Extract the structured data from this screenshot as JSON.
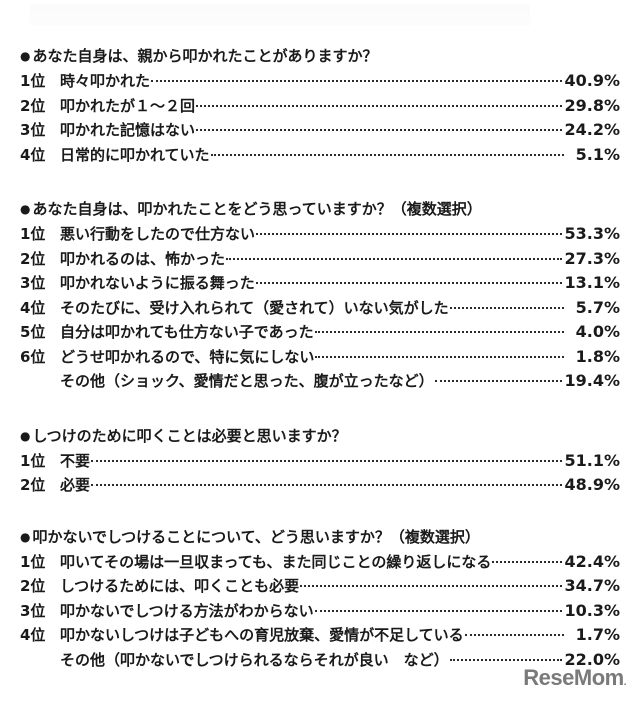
{
  "sections": [
    {
      "question": "あなた自身は、親から叩かれたことがありますか？",
      "rows": [
        {
          "rank": "1位",
          "label": "時々叩かれた",
          "pct": "40.9%"
        },
        {
          "rank": "2位",
          "label": "叩かれたが１～２回",
          "pct": "29.8%"
        },
        {
          "rank": "3位",
          "label": "叩かれた記憶はない",
          "pct": "24.2%"
        },
        {
          "rank": "4位",
          "label": "日常的に叩かれていた",
          "pct": "5.1%"
        }
      ]
    },
    {
      "question": "あなた自身は、叩かれたことをどう思っていますか？（複数選択）",
      "rows": [
        {
          "rank": "1位",
          "label": "悪い行動をしたので仕方ない",
          "pct": "53.3%"
        },
        {
          "rank": "2位",
          "label": "叩かれるのは、怖かった",
          "pct": "27.3%"
        },
        {
          "rank": "3位",
          "label": "叩かれないように振る舞った",
          "pct": "13.1%"
        },
        {
          "rank": "4位",
          "label": "そのたびに、受け入れられて（愛されて）いない気がした",
          "pct": "5.7%"
        },
        {
          "rank": "5位",
          "label": "自分は叩かれても仕方ない子であった",
          "pct": "4.0%"
        },
        {
          "rank": "6位",
          "label": "どうせ叩かれるので、特に気にしない",
          "pct": "1.8%"
        },
        {
          "rank": "",
          "label": "その他（ショック、愛情だと思った、腹が立ったなど）",
          "pct": "19.4%"
        }
      ]
    },
    {
      "question": "しつけのために叩くことは必要と思いますか？",
      "rows": [
        {
          "rank": "1位",
          "label": "不要",
          "pct": "51.1%"
        },
        {
          "rank": "2位",
          "label": "必要",
          "pct": "48.9%"
        }
      ]
    },
    {
      "question": "叩かないでしつけることについて、どう思いますか？（複数選択）",
      "rows": [
        {
          "rank": "1位",
          "label": "叩いてその場は一旦収まっても、また同じことの繰り返しになる",
          "pct": "42.4%"
        },
        {
          "rank": "2位",
          "label": "しつけるためには、叩くことも必要",
          "pct": "34.7%"
        },
        {
          "rank": "3位",
          "label": "叩かないでしつける方法がわからない",
          "pct": "10.3%"
        },
        {
          "rank": "4位",
          "label": "叩かないしつけは子どもへの育児放棄、愛情が不足している",
          "pct": "1.7%"
        },
        {
          "rank": "",
          "label": "その他（叩かないでしつけられるならそれが良い　など）",
          "pct": "22.0%"
        }
      ]
    }
  ],
  "bullet": "●",
  "logo": {
    "text": "ReseMom",
    "dot": "."
  }
}
